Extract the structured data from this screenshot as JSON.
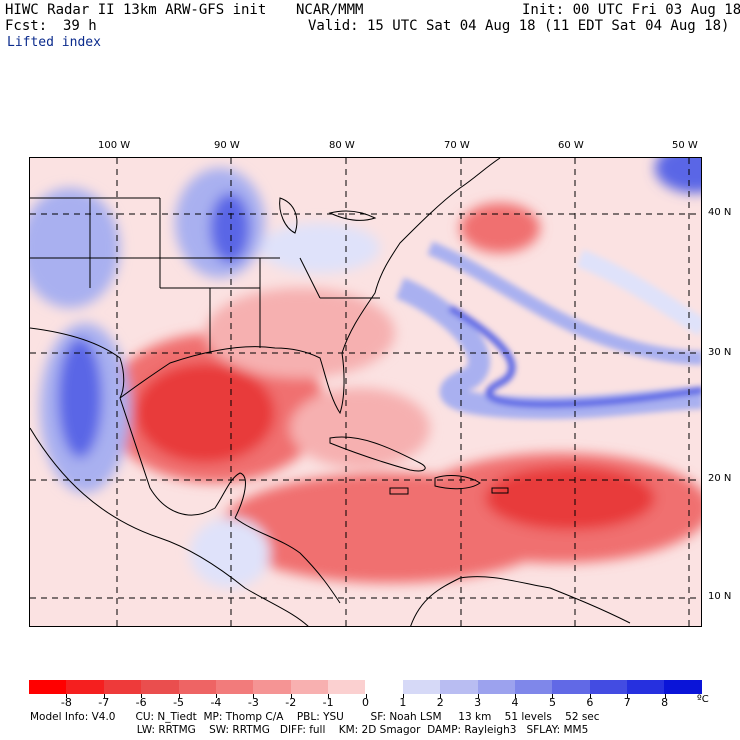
{
  "header": {
    "model_title": "HIWC Radar II 13km ARW-GFS init",
    "org": "NCAR/MMM",
    "init": "Init: 00 UTC Fri 03 Aug 18",
    "fcst_label": "Fcst:",
    "fcst_value": "39 h",
    "valid": "Valid: 15 UTC Sat 04 Aug 18 (11 EDT Sat 04 Aug 18)",
    "field": "Lifted index"
  },
  "map": {
    "longitudes": [
      "100 W",
      "90 W",
      "80 W",
      "70 W",
      "60 W",
      "50 W"
    ],
    "latitudes": [
      "40 N",
      "30 N",
      "20 N",
      "10 N"
    ],
    "colors": {
      "strong_red": "#e83a3a",
      "red": "#f07070",
      "light_red": "#f6b0b0",
      "pale_red": "#fbe2e2",
      "pale_blue": "#dfe2fa",
      "light_blue": "#a9b0f0",
      "blue": "#5a66e6",
      "strong_blue": "#2a36d8"
    }
  },
  "colorbar": {
    "labels": [
      "-8",
      "-7",
      "-6",
      "-5",
      "-4",
      "-3",
      "-2",
      "-1",
      "0",
      "1",
      "2",
      "3",
      "4",
      "5",
      "6",
      "7",
      "8"
    ],
    "unit": "ºC",
    "colors": [
      "#ff0000",
      "#f51f1f",
      "#ee3a3a",
      "#ea4e4e",
      "#ee6464",
      "#f27b7b",
      "#f59494",
      "#f8b0b0",
      "#fbd0d0",
      "#ffffff",
      "#d6d9f7",
      "#b9bdf2",
      "#9ca2ee",
      "#7f87ea",
      "#6169e6",
      "#434ce2",
      "#2630df",
      "#0a14d8"
    ]
  },
  "footer": {
    "line1": "Model Info: V4.0      CU: N_Tiedt  MP: Thomp C/A    PBL: YSU        SF: Noah LSM     13 km    51 levels    52 sec",
    "line2": "                                LW: RRTMG    SW: RRTMG   DIFF: full    KM: 2D Smagor  DAMP: Rayleigh3   SFLAY: MM5"
  }
}
